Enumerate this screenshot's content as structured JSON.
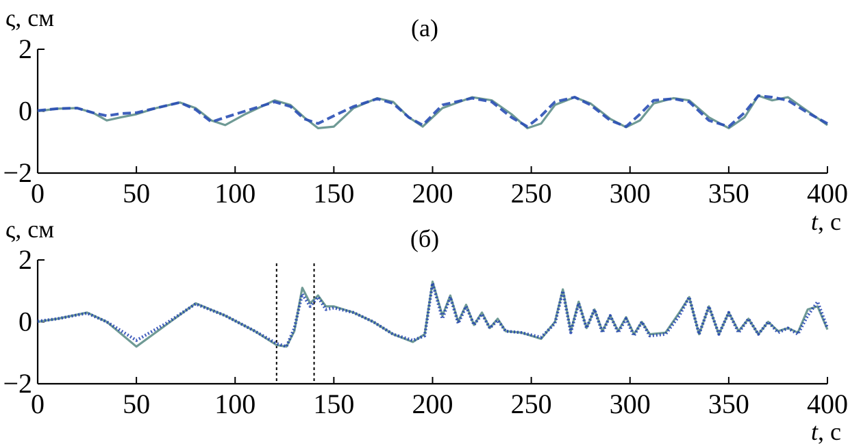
{
  "chart_data": [
    {
      "type": "line",
      "panel_label": "(а)",
      "ylabel": "ς, см",
      "xlabel": "t, с",
      "xlim": [
        0,
        400
      ],
      "ylim": [
        -2,
        2
      ],
      "xticks": [
        0,
        50,
        100,
        150,
        200,
        250,
        300,
        350,
        400
      ],
      "yticks": [
        -2,
        0,
        2
      ],
      "xtick_labels": [
        "0",
        "50",
        "100",
        "150",
        "200",
        "250",
        "300",
        "350",
        "400"
      ],
      "ytick_labels": [
        "−2",
        "0",
        "2"
      ],
      "series": [
        {
          "style": "solid",
          "color": "#6f9a95",
          "x": [
            0,
            10,
            20,
            28,
            35,
            42,
            50,
            60,
            72,
            80,
            88,
            95,
            105,
            120,
            128,
            135,
            142,
            150,
            160,
            172,
            180,
            188,
            195,
            205,
            220,
            230,
            240,
            248,
            255,
            262,
            272,
            280,
            290,
            298,
            305,
            312,
            322,
            330,
            340,
            350,
            358,
            365,
            372,
            380,
            390,
            400
          ],
          "y": [
            0.0,
            0.08,
            0.1,
            -0.05,
            -0.3,
            -0.2,
            -0.1,
            0.1,
            0.28,
            0.1,
            -0.3,
            -0.45,
            -0.1,
            0.35,
            0.2,
            -0.2,
            -0.55,
            -0.5,
            0.1,
            0.42,
            0.3,
            -0.2,
            -0.5,
            0.1,
            0.45,
            0.35,
            -0.1,
            -0.55,
            -0.4,
            0.2,
            0.45,
            0.25,
            -0.25,
            -0.52,
            -0.3,
            0.25,
            0.42,
            0.35,
            -0.2,
            -0.55,
            -0.2,
            0.5,
            0.35,
            0.45,
            0.0,
            -0.45
          ]
        },
        {
          "style": "dashed",
          "color": "#2a4fb5",
          "x": [
            0,
            10,
            20,
            28,
            35,
            42,
            50,
            60,
            72,
            80,
            88,
            95,
            105,
            120,
            128,
            135,
            142,
            150,
            160,
            172,
            180,
            188,
            195,
            205,
            220,
            230,
            240,
            248,
            255,
            262,
            272,
            280,
            290,
            298,
            305,
            312,
            322,
            330,
            340,
            350,
            358,
            365,
            372,
            380,
            390,
            400
          ],
          "y": [
            0.02,
            0.08,
            0.1,
            -0.05,
            -0.15,
            -0.08,
            -0.05,
            0.1,
            0.28,
            0.05,
            -0.35,
            -0.2,
            0.0,
            0.3,
            0.15,
            -0.25,
            -0.4,
            -0.15,
            0.15,
            0.4,
            0.25,
            -0.2,
            -0.45,
            0.2,
            0.42,
            0.3,
            -0.2,
            -0.5,
            -0.15,
            0.3,
            0.45,
            0.2,
            -0.3,
            -0.5,
            -0.1,
            0.35,
            0.4,
            0.3,
            -0.3,
            -0.5,
            -0.05,
            0.5,
            0.45,
            0.35,
            -0.05,
            -0.4
          ]
        }
      ]
    },
    {
      "type": "line",
      "panel_label": "(б)",
      "ylabel": "ς, см",
      "xlabel": "t, с",
      "xlim": [
        0,
        400
      ],
      "ylim": [
        -2,
        2
      ],
      "xticks": [
        0,
        50,
        100,
        150,
        200,
        250,
        300,
        350,
        400
      ],
      "yticks": [
        -2,
        0,
        2
      ],
      "xtick_labels": [
        "0",
        "50",
        "100",
        "150",
        "200",
        "250",
        "300",
        "350",
        "400"
      ],
      "ytick_labels": [
        "−2",
        "0",
        "2"
      ],
      "vlines": [
        121,
        140
      ],
      "series": [
        {
          "style": "solid",
          "color": "#6f9a95",
          "x": [
            0,
            10,
            25,
            35,
            50,
            65,
            80,
            95,
            110,
            121,
            126,
            130,
            134,
            138,
            142,
            146,
            150,
            160,
            170,
            180,
            190,
            196,
            200,
            205,
            209,
            213,
            217,
            221,
            225,
            229,
            233,
            237,
            245,
            255,
            262,
            266,
            270,
            274,
            278,
            282,
            286,
            290,
            294,
            298,
            302,
            306,
            310,
            318,
            325,
            330,
            335,
            340,
            345,
            350,
            355,
            360,
            365,
            370,
            375,
            380,
            385,
            390,
            395,
            400
          ],
          "y": [
            0.0,
            0.1,
            0.3,
            0.0,
            -0.8,
            -0.1,
            0.6,
            0.2,
            -0.3,
            -0.75,
            -0.8,
            -0.3,
            1.1,
            0.6,
            0.85,
            0.5,
            0.5,
            0.3,
            0.0,
            -0.4,
            -0.65,
            -0.4,
            1.3,
            0.2,
            0.85,
            0.0,
            0.55,
            -0.1,
            0.3,
            -0.2,
            0.1,
            -0.3,
            -0.35,
            -0.55,
            0.0,
            1.05,
            -0.3,
            0.65,
            -0.2,
            0.4,
            -0.3,
            0.2,
            -0.3,
            0.15,
            -0.4,
            0.0,
            -0.4,
            -0.35,
            0.3,
            0.8,
            -0.4,
            0.5,
            -0.4,
            0.3,
            -0.3,
            0.1,
            -0.4,
            0.0,
            -0.3,
            -0.2,
            -0.35,
            0.4,
            0.5,
            -0.25
          ]
        },
        {
          "style": "dotted",
          "color": "#1e3fb0",
          "x": [
            0,
            10,
            25,
            35,
            50,
            65,
            80,
            95,
            110,
            121,
            126,
            130,
            134,
            138,
            142,
            146,
            150,
            160,
            170,
            180,
            190,
            196,
            200,
            205,
            209,
            213,
            217,
            221,
            225,
            229,
            233,
            237,
            245,
            255,
            262,
            266,
            270,
            274,
            278,
            282,
            286,
            290,
            294,
            298,
            302,
            306,
            310,
            318,
            325,
            330,
            335,
            340,
            345,
            350,
            355,
            360,
            365,
            370,
            375,
            380,
            385,
            390,
            395,
            400
          ],
          "y": [
            0.02,
            0.1,
            0.28,
            0.0,
            -0.6,
            -0.05,
            0.58,
            0.2,
            -0.3,
            -0.7,
            -0.8,
            -0.2,
            0.9,
            0.5,
            0.8,
            0.4,
            0.45,
            0.3,
            0.0,
            -0.4,
            -0.6,
            -0.45,
            1.25,
            0.1,
            0.8,
            -0.05,
            0.5,
            -0.1,
            0.25,
            -0.2,
            0.05,
            -0.3,
            -0.35,
            -0.5,
            -0.05,
            1.0,
            -0.35,
            0.6,
            -0.2,
            0.4,
            -0.35,
            0.2,
            -0.35,
            0.1,
            -0.45,
            0.0,
            -0.45,
            -0.4,
            0.2,
            0.8,
            -0.4,
            0.5,
            -0.4,
            0.3,
            -0.35,
            0.1,
            -0.4,
            0.0,
            -0.35,
            -0.2,
            -0.4,
            0.2,
            0.65,
            -0.2
          ]
        }
      ]
    }
  ]
}
